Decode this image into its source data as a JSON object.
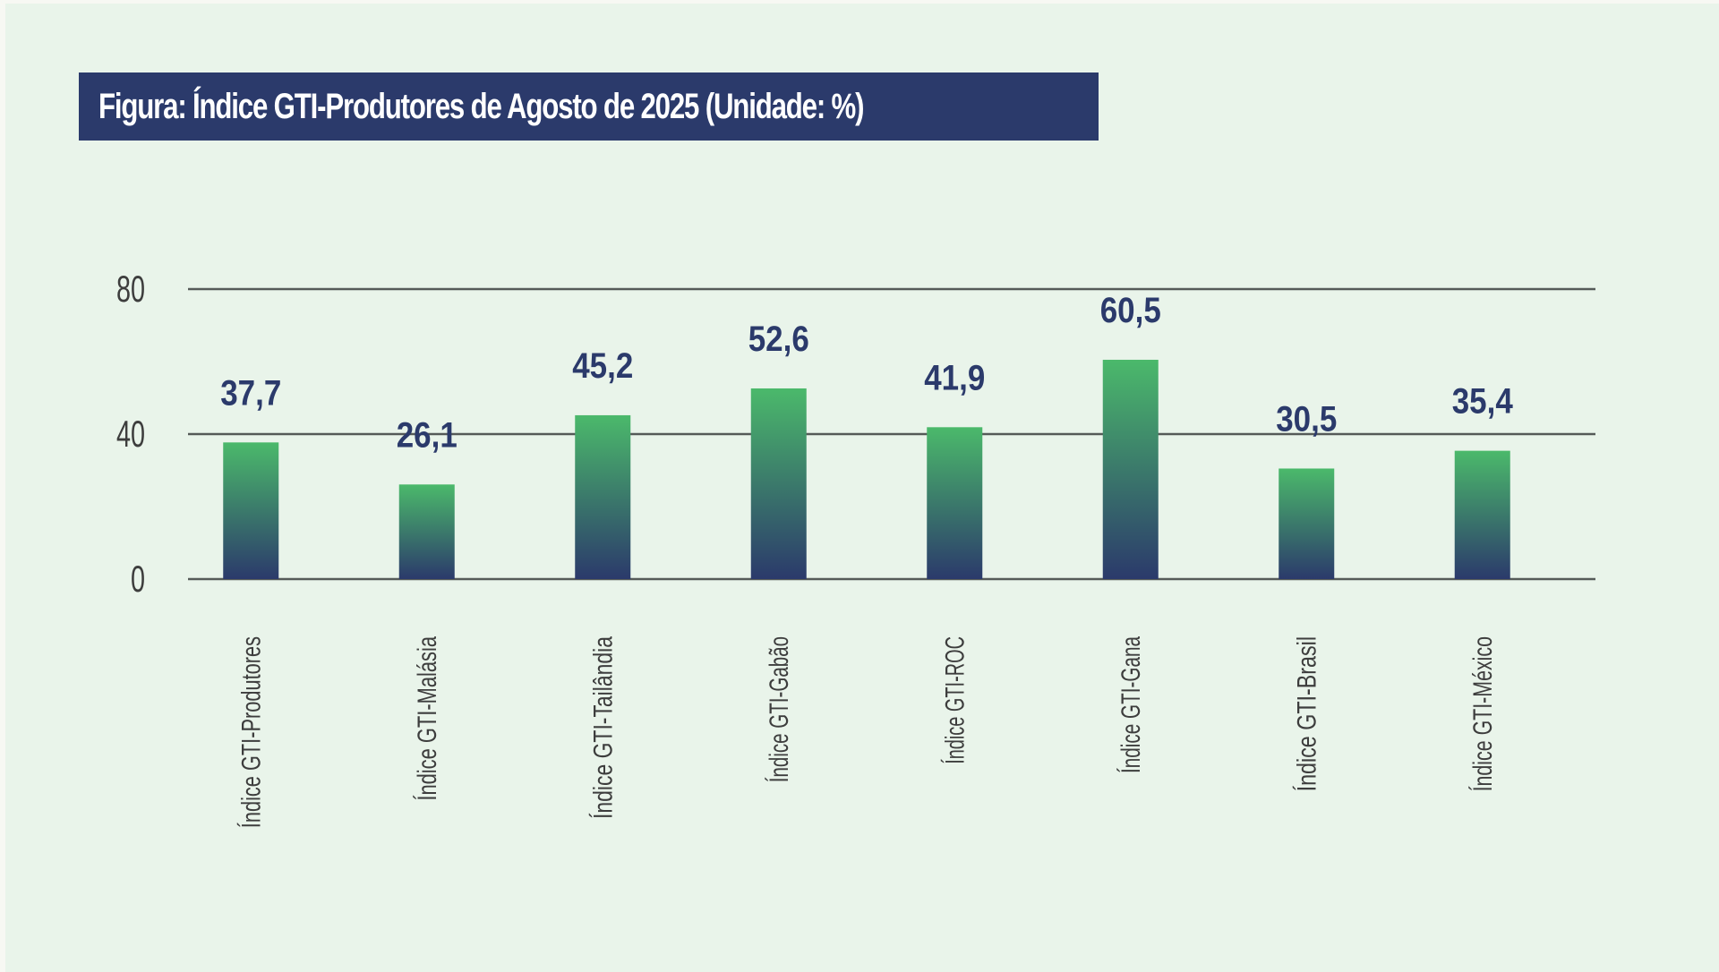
{
  "title": "Figura: Índice GTI-Produtores de Agosto de 2025 (Unidade: %)",
  "colors": {
    "background": "#e9f4ea",
    "title_bg": "#2b3a6b",
    "title_text": "#ffffff",
    "bar_top": "#4bb96b",
    "bar_bottom": "#2b3a6b",
    "grid": "#555a58",
    "data_label": "#2b3a6b",
    "axis_text": "#3d3d3d"
  },
  "chart_data": {
    "type": "bar",
    "title": "Figura: Índice GTI-Produtores de Agosto de 2025 (Unidade: %)",
    "xlabel": "",
    "ylabel": "",
    "ylim": [
      0,
      80
    ],
    "yticks": [
      0,
      40,
      80
    ],
    "ytick_labels": [
      "0",
      "40",
      "80"
    ],
    "grid": true,
    "legend": "none",
    "categories": [
      "Índice GTI-Produtores",
      "Índice GTI-Malásia",
      "Índice GTI-Tailândia",
      "Índice GTI-Gabão",
      "Índice GTI-ROC",
      "Índice GTI-Gana",
      "Índice GTI-Brasil",
      "Índice GTI-México"
    ],
    "values": [
      37.7,
      26.1,
      45.2,
      52.6,
      41.9,
      60.5,
      30.5,
      35.4
    ],
    "value_labels": [
      "37,7",
      "26,1",
      "45,2",
      "52,6",
      "41,9",
      "60,5",
      "30,5",
      "35,4"
    ]
  }
}
